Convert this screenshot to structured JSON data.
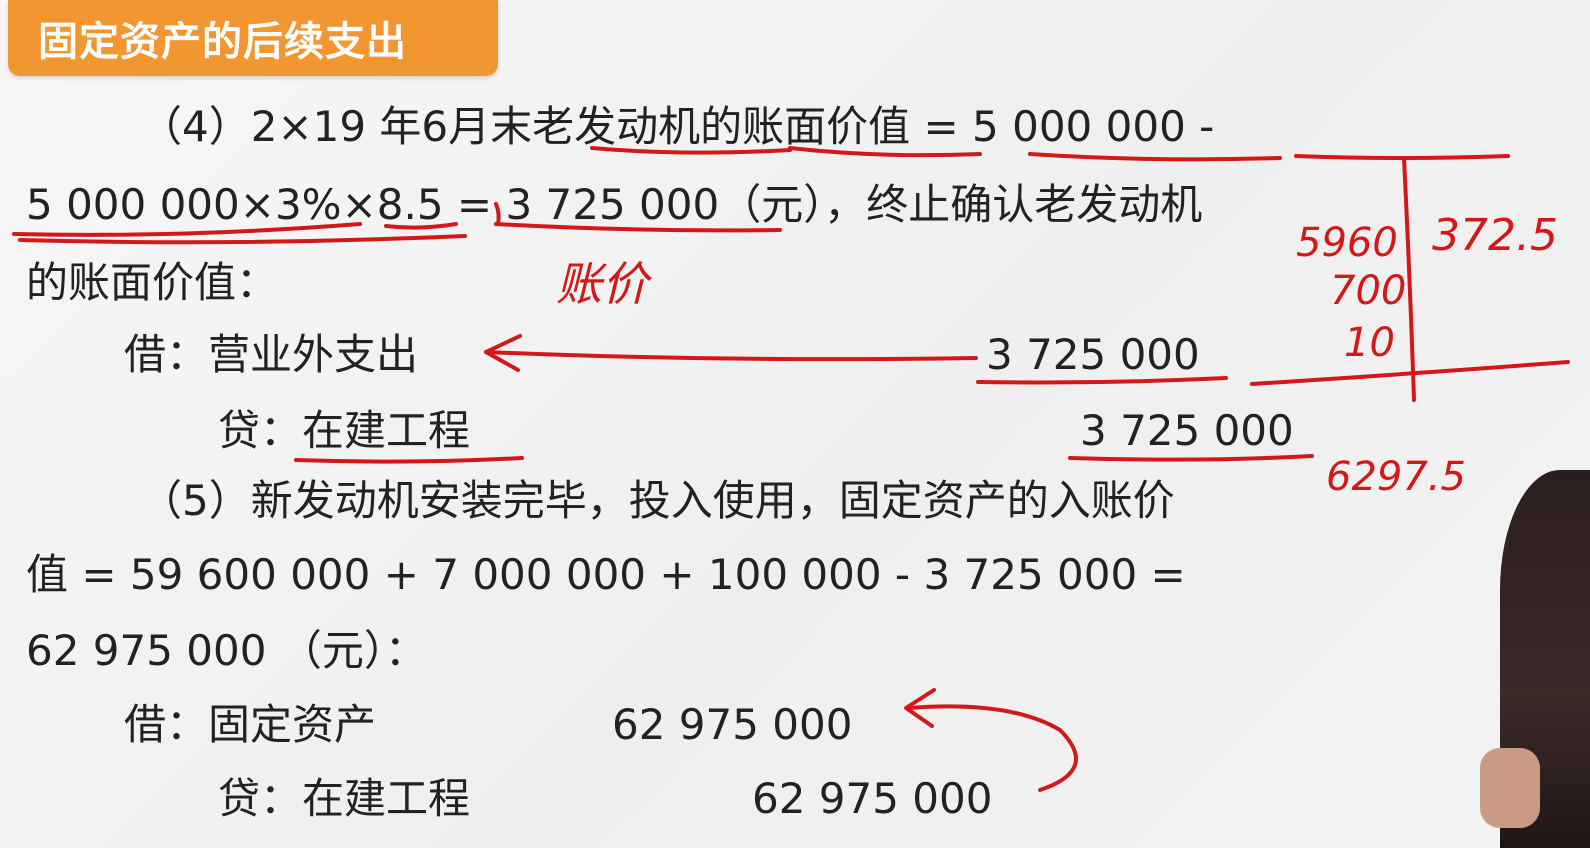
{
  "header": {
    "title": "固定资产的后续支出"
  },
  "section4": {
    "line1": "（4）2×19 年6月末老发动机的账面价值 = 5 000 000 -",
    "line2": "5 000 000×3%×8.5 = 3 725 000（元），终止确认老发动机",
    "line3": "的账面价值：",
    "debit_label": "借：营业外支出",
    "debit_amount": "3 725 000",
    "credit_label": "贷：在建工程",
    "credit_amount": "3 725 000"
  },
  "section5": {
    "line1": "（5）新发动机安装完毕，投入使用，固定资产的入账价",
    "line2": "值 = 59 600 000 + 7 000 000 + 100 000 - 3 725 000 =",
    "line3": "62 975 000 （元）：",
    "debit_label": "借：固定资产",
    "debit_amount": "62 975 000",
    "credit_label": "贷：在建工程",
    "credit_amount": "62 975 000"
  },
  "annotations": {
    "note_under": "账价",
    "t_left_top": "5960",
    "t_left_mid": "700",
    "t_left_bot": "10",
    "t_right": "372.5",
    "t_total": "6297.5",
    "ink_color": "#d21818"
  },
  "colors": {
    "title_bg": "#f29632",
    "text": "#222222"
  }
}
